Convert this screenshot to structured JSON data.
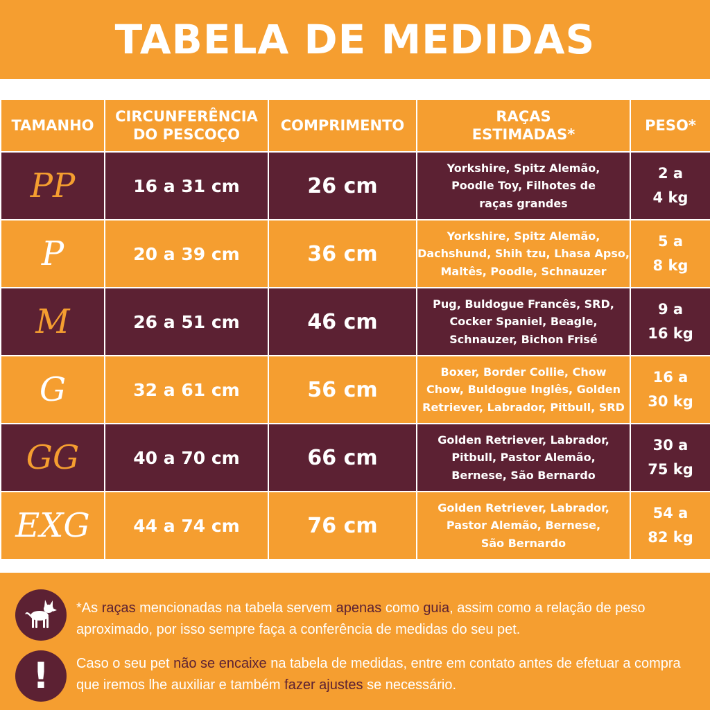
{
  "title": "TABELA DE MEDIDAS",
  "colors": {
    "orange": "#F59E30",
    "plum": "#5C2133",
    "white": "#FFFFFF"
  },
  "headers": {
    "tamanho": "TAMANHO",
    "pescoco_1": "CIRCUNFERÊNCIA",
    "pescoco_2": "DO PESCOÇO",
    "comprimento": "COMPRIMENTO",
    "racas_1": "RAÇAS",
    "racas_2": "ESTIMADAS*",
    "peso": "PESO*"
  },
  "rows": [
    {
      "size": "PP",
      "neck": "16 a 31 cm",
      "length": "26 cm",
      "breeds": [
        "Yorkshire, Spitz Alemão,",
        "Poodle Toy, Filhotes de",
        "raças grandes"
      ],
      "peso": [
        "2 a",
        "4 kg"
      ]
    },
    {
      "size": "P",
      "neck": "20 a 39 cm",
      "length": "36 cm",
      "breeds": [
        "Yorkshire, Spitz Alemão,",
        "Dachshund, Shih tzu, Lhasa Apso,",
        "Maltês, Poodle, Schnauzer"
      ],
      "peso": [
        "5 a",
        "8 kg"
      ]
    },
    {
      "size": "M",
      "neck": "26 a 51 cm",
      "length": "46 cm",
      "breeds": [
        "Pug, Buldogue Francês, SRD,",
        "Cocker Spaniel, Beagle,",
        "Schnauzer, Bichon Frisé"
      ],
      "peso": [
        "9 a",
        "16 kg"
      ]
    },
    {
      "size": "G",
      "neck": "32 a 61 cm",
      "length": "56 cm",
      "breeds": [
        "Boxer, Border Collie, Chow",
        "Chow, Buldogue Inglês, Golden",
        "Retriever, Labrador, Pitbull, SRD"
      ],
      "peso": [
        "16 a",
        "30 kg"
      ]
    },
    {
      "size": "GG",
      "neck": "40 a 70 cm",
      "length": "66 cm",
      "breeds": [
        "Golden Retriever, Labrador,",
        "Pitbull, Pastor Alemão,",
        "Bernese, São Bernardo"
      ],
      "peso": [
        "30 a",
        "75 kg"
      ]
    },
    {
      "size": "EXG",
      "neck": "44 a 74 cm",
      "length": "76 cm",
      "breeds": [
        "Golden Retriever, Labrador,",
        "Pastor Alemão, Bernese,",
        "São Bernardo"
      ],
      "peso": [
        "54 a",
        "82 kg"
      ]
    }
  ],
  "note1": {
    "icon": "dog-icon",
    "p1": "*As ",
    "h1": "raças",
    "p2": " mencionadas na tabela servem ",
    "h2": "apenas",
    "p3": " como ",
    "h3": "guia",
    "p4": ", assim como a relação de peso aproximado, por isso sempre faça a conferência de medidas do seu pet."
  },
  "note2": {
    "icon": "exclamation-icon",
    "symbol": "!",
    "p1": "Caso o seu pet ",
    "h1": "não se encaixe",
    "p2": " na tabela de medidas, entre em contato antes de efetuar a compra que iremos lhe auxiliar e também ",
    "h2": "fazer ajustes",
    "p3": "  se necessário."
  }
}
